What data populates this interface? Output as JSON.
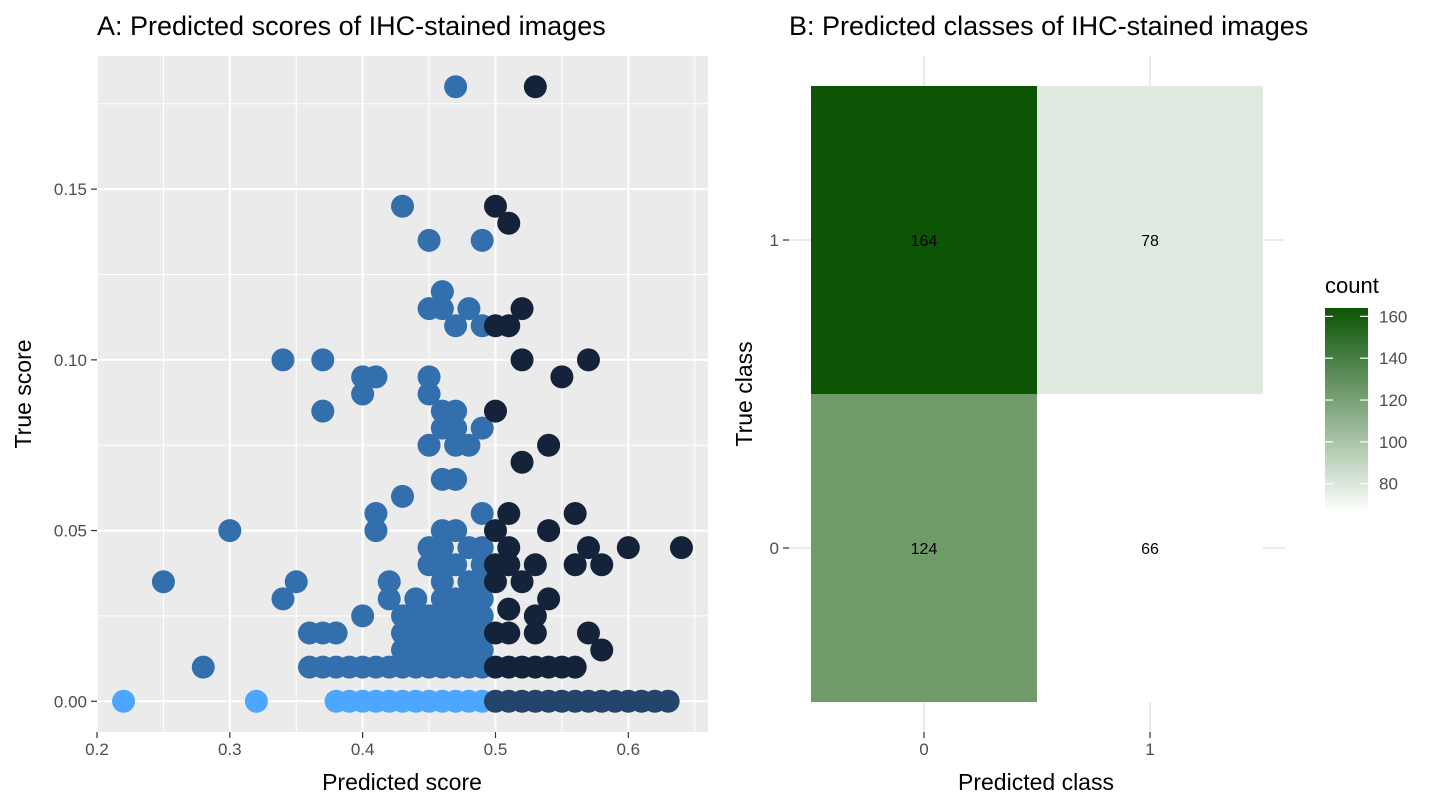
{
  "chart_data": [
    {
      "type": "scatter",
      "title": "A: Predicted scores of IHC-stained images",
      "xlabel": "Predicted score",
      "ylabel": "True score",
      "xlim": [
        0.2,
        0.66
      ],
      "ylim": [
        -0.009,
        0.189
      ],
      "xticks": [
        "0.2",
        "0.3",
        "0.4",
        "0.5",
        "0.6"
      ],
      "yticks": [
        "0.00",
        "0.05",
        "0.10",
        "0.15"
      ],
      "grid": true,
      "colors": {
        "light": "#4da6ff",
        "medium": "#336ead",
        "dark": "#15233a",
        "navy": "#24446b"
      },
      "groups": [
        {
          "color_key": "light",
          "points": [
            [
              0.22,
              0
            ],
            [
              0.32,
              0
            ],
            [
              0.38,
              0
            ],
            [
              0.39,
              0
            ],
            [
              0.4,
              0
            ],
            [
              0.41,
              0
            ],
            [
              0.42,
              0
            ],
            [
              0.43,
              0
            ],
            [
              0.44,
              0
            ],
            [
              0.45,
              0
            ],
            [
              0.46,
              0
            ],
            [
              0.47,
              0
            ],
            [
              0.48,
              0
            ],
            [
              0.49,
              0
            ]
          ]
        },
        {
          "color_key": "navy",
          "points": [
            [
              0.5,
              0
            ],
            [
              0.51,
              0
            ],
            [
              0.52,
              0
            ],
            [
              0.53,
              0
            ],
            [
              0.54,
              0
            ],
            [
              0.55,
              0
            ],
            [
              0.56,
              0
            ],
            [
              0.57,
              0
            ],
            [
              0.58,
              0
            ],
            [
              0.59,
              0
            ],
            [
              0.6,
              0
            ],
            [
              0.61,
              0
            ],
            [
              0.62,
              0
            ],
            [
              0.63,
              0
            ]
          ]
        },
        {
          "color_key": "medium",
          "points": [
            [
              0.47,
              0.18
            ],
            [
              0.43,
              0.145
            ],
            [
              0.45,
              0.135
            ],
            [
              0.49,
              0.135
            ],
            [
              0.46,
              0.12
            ],
            [
              0.45,
              0.115
            ],
            [
              0.46,
              0.115
            ],
            [
              0.48,
              0.115
            ],
            [
              0.47,
              0.11
            ],
            [
              0.49,
              0.11
            ],
            [
              0.34,
              0.1
            ],
            [
              0.37,
              0.1
            ],
            [
              0.4,
              0.095
            ],
            [
              0.41,
              0.095
            ],
            [
              0.45,
              0.095
            ],
            [
              0.4,
              0.09
            ],
            [
              0.45,
              0.09
            ],
            [
              0.37,
              0.085
            ],
            [
              0.46,
              0.085
            ],
            [
              0.47,
              0.085
            ],
            [
              0.46,
              0.08
            ],
            [
              0.47,
              0.08
            ],
            [
              0.49,
              0.08
            ],
            [
              0.45,
              0.075
            ],
            [
              0.47,
              0.075
            ],
            [
              0.48,
              0.075
            ],
            [
              0.46,
              0.065
            ],
            [
              0.47,
              0.065
            ],
            [
              0.43,
              0.06
            ],
            [
              0.41,
              0.055
            ],
            [
              0.49,
              0.055
            ],
            [
              0.3,
              0.05
            ],
            [
              0.41,
              0.05
            ],
            [
              0.46,
              0.05
            ],
            [
              0.47,
              0.05
            ],
            [
              0.45,
              0.045
            ],
            [
              0.46,
              0.045
            ],
            [
              0.48,
              0.045
            ],
            [
              0.49,
              0.045
            ],
            [
              0.45,
              0.04
            ],
            [
              0.46,
              0.04
            ],
            [
              0.47,
              0.04
            ],
            [
              0.49,
              0.04
            ],
            [
              0.25,
              0.035
            ],
            [
              0.35,
              0.035
            ],
            [
              0.42,
              0.035
            ],
            [
              0.46,
              0.035
            ],
            [
              0.48,
              0.035
            ],
            [
              0.49,
              0.035
            ],
            [
              0.34,
              0.03
            ],
            [
              0.42,
              0.03
            ],
            [
              0.44,
              0.03
            ],
            [
              0.46,
              0.03
            ],
            [
              0.47,
              0.03
            ],
            [
              0.48,
              0.03
            ],
            [
              0.49,
              0.03
            ],
            [
              0.4,
              0.025
            ],
            [
              0.43,
              0.025
            ],
            [
              0.44,
              0.025
            ],
            [
              0.45,
              0.025
            ],
            [
              0.46,
              0.025
            ],
            [
              0.47,
              0.025
            ],
            [
              0.48,
              0.025
            ],
            [
              0.49,
              0.025
            ],
            [
              0.36,
              0.02
            ],
            [
              0.37,
              0.02
            ],
            [
              0.38,
              0.02
            ],
            [
              0.43,
              0.02
            ],
            [
              0.44,
              0.02
            ],
            [
              0.45,
              0.02
            ],
            [
              0.46,
              0.02
            ],
            [
              0.47,
              0.02
            ],
            [
              0.48,
              0.02
            ],
            [
              0.49,
              0.02
            ],
            [
              0.43,
              0.015
            ],
            [
              0.44,
              0.015
            ],
            [
              0.45,
              0.015
            ],
            [
              0.46,
              0.015
            ],
            [
              0.47,
              0.015
            ],
            [
              0.48,
              0.015
            ],
            [
              0.49,
              0.015
            ],
            [
              0.28,
              0.01
            ],
            [
              0.36,
              0.01
            ],
            [
              0.37,
              0.01
            ],
            [
              0.38,
              0.01
            ],
            [
              0.39,
              0.01
            ],
            [
              0.4,
              0.01
            ],
            [
              0.41,
              0.01
            ],
            [
              0.42,
              0.01
            ],
            [
              0.43,
              0.01
            ],
            [
              0.44,
              0.01
            ],
            [
              0.45,
              0.01
            ],
            [
              0.46,
              0.01
            ],
            [
              0.47,
              0.01
            ],
            [
              0.48,
              0.01
            ],
            [
              0.49,
              0.01
            ]
          ]
        },
        {
          "color_key": "dark",
          "points": [
            [
              0.53,
              0.18
            ],
            [
              0.5,
              0.145
            ],
            [
              0.51,
              0.14
            ],
            [
              0.52,
              0.115
            ],
            [
              0.5,
              0.11
            ],
            [
              0.51,
              0.11
            ],
            [
              0.52,
              0.1
            ],
            [
              0.57,
              0.1
            ],
            [
              0.55,
              0.095
            ],
            [
              0.5,
              0.085
            ],
            [
              0.54,
              0.075
            ],
            [
              0.52,
              0.07
            ],
            [
              0.51,
              0.055
            ],
            [
              0.56,
              0.055
            ],
            [
              0.5,
              0.05
            ],
            [
              0.54,
              0.05
            ],
            [
              0.51,
              0.045
            ],
            [
              0.57,
              0.045
            ],
            [
              0.6,
              0.045
            ],
            [
              0.64,
              0.045
            ],
            [
              0.5,
              0.04
            ],
            [
              0.51,
              0.04
            ],
            [
              0.53,
              0.04
            ],
            [
              0.56,
              0.04
            ],
            [
              0.58,
              0.04
            ],
            [
              0.5,
              0.035
            ],
            [
              0.52,
              0.035
            ],
            [
              0.54,
              0.03
            ],
            [
              0.51,
              0.027
            ],
            [
              0.53,
              0.025
            ],
            [
              0.5,
              0.02
            ],
            [
              0.51,
              0.02
            ],
            [
              0.53,
              0.02
            ],
            [
              0.57,
              0.02
            ],
            [
              0.58,
              0.015
            ],
            [
              0.5,
              0.01
            ],
            [
              0.51,
              0.01
            ],
            [
              0.52,
              0.01
            ],
            [
              0.53,
              0.01
            ],
            [
              0.54,
              0.01
            ],
            [
              0.55,
              0.01
            ],
            [
              0.56,
              0.01
            ]
          ]
        }
      ]
    },
    {
      "type": "heatmap",
      "title": "B: Predicted classes of IHC-stained images",
      "xlabel": "Predicted class",
      "ylabel": "True class",
      "x": [
        "0",
        "1"
      ],
      "y": [
        "0",
        "1"
      ],
      "cells": [
        {
          "x": "0",
          "y": "1",
          "value": 164,
          "label": "164"
        },
        {
          "x": "1",
          "y": "1",
          "value": 78,
          "label": "78"
        },
        {
          "x": "0",
          "y": "0",
          "value": 124,
          "label": "124"
        },
        {
          "x": "1",
          "y": "0",
          "value": 66,
          "label": "66"
        }
      ],
      "legend": {
        "title": "count",
        "position": "right",
        "ticks": [
          "80",
          "100",
          "120",
          "140",
          "160"
        ],
        "range": [
          66,
          164
        ],
        "low_color": "#ffffff",
        "high_color": "#0b5504"
      }
    }
  ]
}
